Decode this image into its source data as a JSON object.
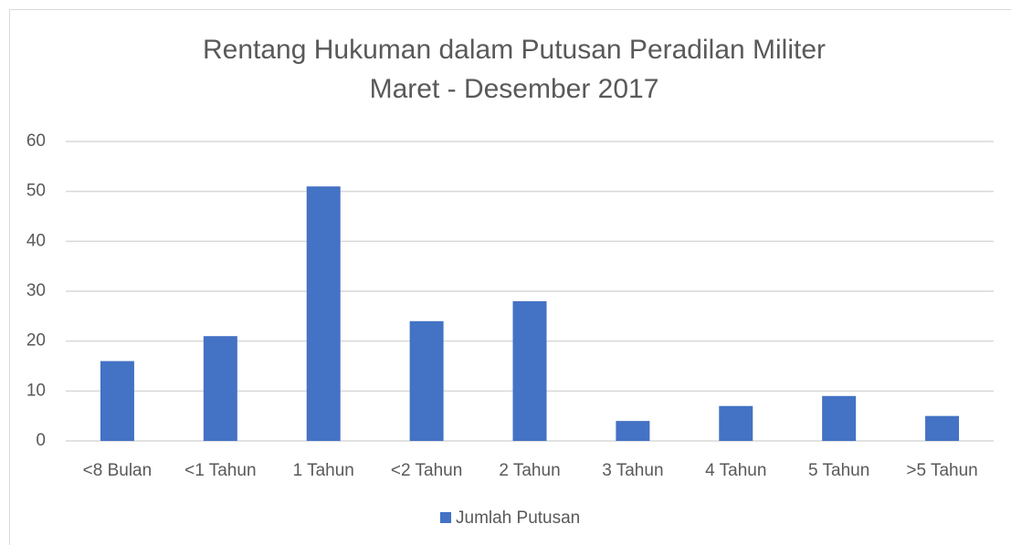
{
  "chart_data": {
    "type": "bar",
    "title": "Rentang Hukuman dalam Putusan Peradilan Militer",
    "subtitle": "Maret - Desember 2017",
    "categories": [
      "<8 Bulan",
      "<1 Tahun",
      "1 Tahun",
      "<2 Tahun",
      "2 Tahun",
      "3 Tahun",
      "4 Tahun",
      "5 Tahun",
      ">5 Tahun"
    ],
    "series": [
      {
        "name": "Jumlah Putusan",
        "color": "#4472c4",
        "values": [
          16,
          21,
          51,
          24,
          28,
          4,
          7,
          9,
          5
        ]
      }
    ],
    "ylim": [
      0,
      60
    ],
    "yticks": [
      0,
      10,
      20,
      30,
      40,
      50,
      60
    ],
    "grid": true,
    "legend": "bottom"
  }
}
